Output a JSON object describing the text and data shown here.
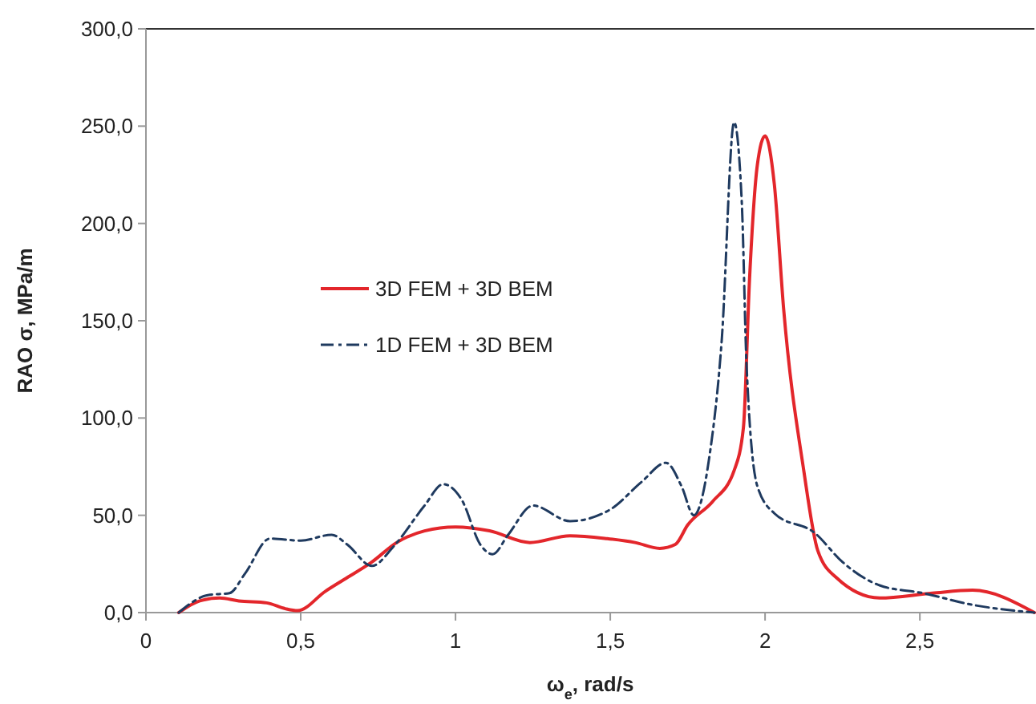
{
  "chart_data": {
    "type": "line",
    "xlabel": "ω$_{e}$, rad/s",
    "ylabel": "RAO σ, MPa/m",
    "xlim": [
      0,
      2.87
    ],
    "ylim": [
      0,
      300
    ],
    "xticks": [
      0,
      {
        "value": 0.5,
        "label": "0,5"
      },
      1,
      {
        "value": 1.5,
        "label": "1,5"
      },
      2,
      {
        "value": 2.5,
        "label": "2,5"
      }
    ],
    "yticks": [
      {
        "value": 0,
        "label": "0,0"
      },
      {
        "value": 50,
        "label": "50,0"
      },
      {
        "value": 100,
        "label": "100,0"
      },
      {
        "value": 150,
        "label": "150,0"
      },
      {
        "value": 200,
        "label": "200,0"
      },
      {
        "value": 250,
        "label": "250,0"
      },
      {
        "value": 300,
        "label": "300,0"
      }
    ],
    "grid": false,
    "legend": "left",
    "marker": "none",
    "series": [
      {
        "name": "3D FEM + 3D BEM",
        "color": "#e3262b",
        "line_style": "solid",
        "x": [
          0.106,
          0.174,
          0.238,
          0.3,
          0.39,
          0.45,
          0.49,
          0.58,
          0.64,
          0.73,
          0.81,
          0.9,
          1.0,
          1.11,
          1.24,
          1.37,
          1.49,
          1.58,
          1.66,
          1.71,
          1.75,
          1.83,
          1.9,
          1.93,
          1.95,
          1.975,
          2.0,
          2.03,
          2.06,
          2.125,
          2.17,
          2.23,
          2.37,
          2.54,
          2.67,
          2.87
        ],
        "values": [
          0,
          6,
          7.5,
          6,
          5,
          2,
          1,
          11,
          17,
          26,
          36,
          42,
          44,
          42,
          36,
          39.5,
          38,
          36,
          33,
          35,
          45,
          57,
          73,
          95,
          172,
          230,
          245,
          220,
          156,
          73,
          32,
          18,
          7.5,
          10,
          11.5,
          0
        ]
      },
      {
        "name": "1D FEM + 3D BEM",
        "color": "#1f3a5f",
        "line_style": "dashed",
        "x": [
          0.106,
          0.2,
          0.27,
          0.32,
          0.4,
          0.5,
          0.6,
          0.65,
          0.73,
          0.8,
          0.9,
          0.96,
          1.02,
          1.08,
          1.12,
          1.17,
          1.25,
          1.37,
          1.5,
          1.6,
          1.68,
          1.73,
          1.77,
          1.82,
          1.86,
          1.9,
          1.925,
          1.94,
          1.975,
          2.03,
          2.16,
          2.25,
          2.37,
          2.51,
          2.67,
          2.87
        ],
        "values": [
          0,
          9,
          10,
          20,
          38,
          37,
          40,
          35,
          24,
          34,
          55,
          66,
          58,
          35,
          30,
          40,
          55,
          47,
          53,
          67,
          77,
          65,
          50,
          80,
          140,
          252,
          210,
          128,
          65,
          51,
          41,
          26,
          14,
          10,
          4,
          0
        ]
      }
    ]
  }
}
